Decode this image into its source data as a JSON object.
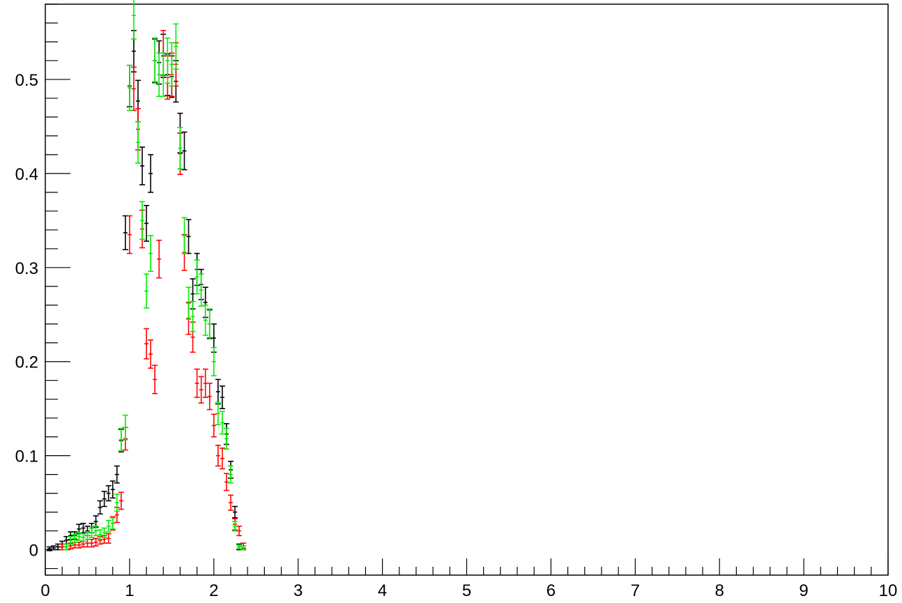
{
  "chart_data": {
    "type": "scatter",
    "title": "",
    "xlabel": "",
    "ylabel": "",
    "xlim": [
      0,
      10
    ],
    "ylim": [
      -0.027,
      0.58
    ],
    "x_major_ticks": [
      0,
      1,
      2,
      3,
      4,
      5,
      6,
      7,
      8,
      9,
      10
    ],
    "x_tick_labels": [
      "0",
      "1",
      "2",
      "3",
      "4",
      "5",
      "6",
      "7",
      "8",
      "9",
      "10"
    ],
    "y_major_ticks": [
      0,
      0.1,
      0.2,
      0.3,
      0.4,
      0.5
    ],
    "y_tick_labels": [
      "0",
      "0.1",
      "0.2",
      "0.3",
      "0.4",
      "0.5"
    ],
    "grid": false,
    "legend": "none",
    "series": [
      {
        "color": "#000000",
        "x": [
          0.05,
          0.1,
          0.15,
          0.2,
          0.25,
          0.3,
          0.35,
          0.4,
          0.45,
          0.5,
          0.55,
          0.6,
          0.65,
          0.7,
          0.75,
          0.8,
          0.85,
          0.9,
          0.95,
          1.0,
          1.05,
          1.1,
          1.15,
          1.2,
          1.25,
          1.3,
          1.35,
          1.4,
          1.45,
          1.5,
          1.55,
          1.6,
          1.65,
          1.7,
          1.75,
          1.8,
          1.85,
          1.9,
          1.95,
          2.0,
          2.05,
          2.1,
          2.15,
          2.2,
          2.25,
          2.3,
          2.35
        ],
        "y": [
          0.001,
          0.002,
          0.003,
          0.006,
          0.01,
          0.015,
          0.015,
          0.022,
          0.023,
          0.02,
          0.023,
          0.03,
          0.045,
          0.054,
          0.06,
          0.064,
          0.08,
          0.116,
          0.337,
          0.493,
          0.53,
          0.477,
          0.408,
          0.347,
          0.4,
          0.52,
          0.518,
          0.525,
          0.505,
          0.503,
          0.498,
          0.443,
          0.424,
          0.333,
          0.272,
          0.298,
          0.282,
          0.263,
          0.24,
          0.225,
          0.168,
          0.162,
          0.123,
          0.085,
          0.04,
          0.003,
          0.002
        ],
        "err": [
          0.002,
          0.002,
          0.003,
          0.003,
          0.004,
          0.004,
          0.004,
          0.005,
          0.005,
          0.005,
          0.005,
          0.006,
          0.007,
          0.008,
          0.008,
          0.009,
          0.009,
          0.012,
          0.018,
          0.022,
          0.022,
          0.022,
          0.02,
          0.019,
          0.02,
          0.023,
          0.023,
          0.023,
          0.022,
          0.022,
          0.022,
          0.021,
          0.02,
          0.018,
          0.016,
          0.017,
          0.016,
          0.016,
          0.015,
          0.015,
          0.013,
          0.012,
          0.011,
          0.009,
          0.006,
          0.003,
          0.002
        ]
      },
      {
        "color": "#ff0000",
        "x": [
          0.2,
          0.25,
          0.3,
          0.35,
          0.4,
          0.45,
          0.5,
          0.55,
          0.6,
          0.65,
          0.7,
          0.75,
          0.8,
          0.85,
          0.9,
          0.95,
          1.0,
          1.05,
          1.1,
          1.15,
          1.2,
          1.25,
          1.3,
          1.35,
          1.4,
          1.45,
          1.5,
          1.55,
          1.6,
          1.65,
          1.7,
          1.75,
          1.8,
          1.85,
          1.9,
          1.95,
          2.0,
          2.05,
          2.1,
          2.15,
          2.2,
          2.25,
          2.3,
          2.35
        ],
        "y": [
          0.003,
          0.003,
          0.004,
          0.005,
          0.005,
          0.006,
          0.007,
          0.007,
          0.008,
          0.01,
          0.011,
          0.012,
          0.028,
          0.037,
          0.052,
          0.118,
          0.335,
          0.49,
          0.447,
          0.341,
          0.219,
          0.208,
          0.181,
          0.309,
          0.528,
          0.502,
          0.505,
          0.516,
          0.421,
          0.316,
          0.246,
          0.226,
          0.177,
          0.17,
          0.177,
          0.163,
          0.132,
          0.1,
          0.097,
          0.072,
          0.05,
          0.027,
          0.02,
          0.004
        ],
        "err": [
          0.003,
          0.003,
          0.003,
          0.003,
          0.003,
          0.003,
          0.004,
          0.004,
          0.004,
          0.004,
          0.004,
          0.005,
          0.007,
          0.008,
          0.009,
          0.012,
          0.02,
          0.023,
          0.022,
          0.02,
          0.016,
          0.015,
          0.015,
          0.02,
          0.024,
          0.023,
          0.023,
          0.023,
          0.022,
          0.019,
          0.017,
          0.016,
          0.015,
          0.014,
          0.015,
          0.014,
          0.012,
          0.011,
          0.011,
          0.009,
          0.008,
          0.006,
          0.005,
          0.003
        ]
      },
      {
        "color": "#00ee00",
        "x": [
          0.25,
          0.3,
          0.35,
          0.4,
          0.45,
          0.5,
          0.55,
          0.6,
          0.65,
          0.7,
          0.75,
          0.8,
          0.85,
          0.9,
          0.95,
          1.0,
          1.05,
          1.1,
          1.15,
          1.2,
          1.25,
          1.3,
          1.35,
          1.4,
          1.45,
          1.5,
          1.55,
          1.6,
          1.65,
          1.7,
          1.75,
          1.8,
          1.85,
          1.9,
          1.95,
          2.0,
          2.05,
          2.1,
          2.15,
          2.2,
          2.25,
          2.3,
          2.35
        ],
        "y": [
          0.003,
          0.01,
          0.012,
          0.014,
          0.013,
          0.015,
          0.018,
          0.02,
          0.016,
          0.018,
          0.025,
          0.028,
          0.05,
          0.117,
          0.13,
          0.491,
          0.568,
          0.433,
          0.35,
          0.275,
          0.315,
          0.52,
          0.505,
          0.505,
          0.52,
          0.516,
          0.535,
          0.427,
          0.334,
          0.262,
          0.248,
          0.29,
          0.276,
          0.244,
          0.24,
          0.2,
          0.145,
          0.135,
          0.118,
          0.08,
          0.025,
          0.003,
          0.002
        ],
        "err": [
          0.003,
          0.004,
          0.004,
          0.004,
          0.004,
          0.004,
          0.005,
          0.005,
          0.005,
          0.005,
          0.006,
          0.006,
          0.009,
          0.012,
          0.013,
          0.024,
          0.025,
          0.022,
          0.02,
          0.018,
          0.019,
          0.024,
          0.023,
          0.023,
          0.024,
          0.023,
          0.024,
          0.022,
          0.019,
          0.017,
          0.016,
          0.018,
          0.017,
          0.016,
          0.016,
          0.015,
          0.012,
          0.012,
          0.011,
          0.009,
          0.005,
          0.002,
          0.002
        ]
      }
    ]
  }
}
